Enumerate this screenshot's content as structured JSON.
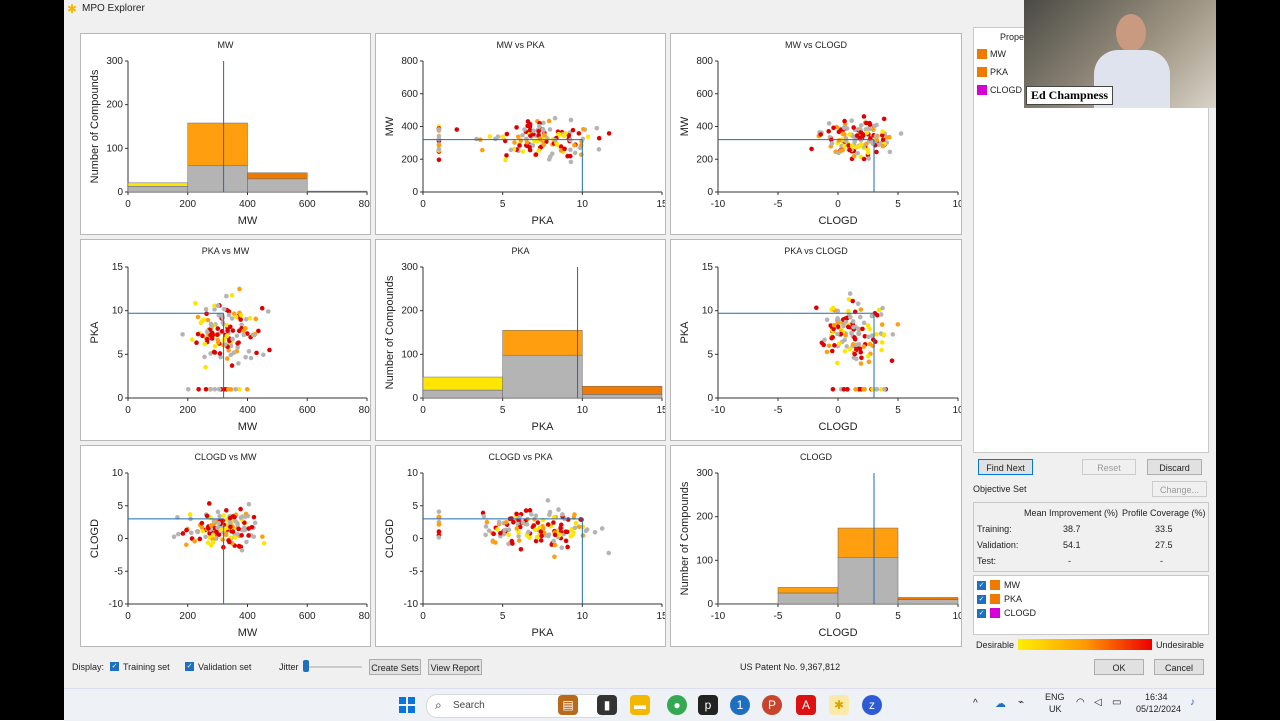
{
  "window": {
    "title": "MPO Explorer"
  },
  "colors": {
    "grey": "#b4b4b4",
    "yellow": "#ffe600",
    "orange": "#ff9f10",
    "dark_orange": "#f07a00",
    "red": "#e00000",
    "line": "#1f6bb0"
  },
  "chart_data": [
    {
      "type": "bar",
      "title": "MW",
      "xlabel": "MW",
      "ylabel": "Number of Compounds",
      "xlim": [
        0,
        800
      ],
      "ylim": [
        0,
        300
      ],
      "xticks": [
        "0",
        "200",
        "400",
        "600",
        "800"
      ],
      "yticks": [
        "0",
        "100",
        "200",
        "300"
      ],
      "bins": [
        [
          0,
          200
        ],
        [
          200,
          400
        ],
        [
          400,
          600
        ],
        [
          600,
          800
        ]
      ],
      "series": [
        {
          "name": "Training",
          "values": [
            13,
            60,
            30,
            1
          ]
        },
        {
          "name": "Validation",
          "values": [
            8,
            98,
            14,
            1
          ]
        }
      ],
      "marker": 320
    },
    {
      "type": "scatter",
      "title": "MW vs PKA",
      "xlabel": "PKA",
      "ylabel": "MW",
      "xlim": [
        0,
        15
      ],
      "ylim": [
        0,
        800
      ],
      "xticks": [
        "0",
        "5",
        "10",
        "15"
      ],
      "yticks": [
        "0",
        "200",
        "400",
        "600",
        "800"
      ],
      "crosshair": [
        10,
        320
      ]
    },
    {
      "type": "scatter",
      "title": "MW vs CLOGD",
      "xlabel": "CLOGD",
      "ylabel": "MW",
      "xlim": [
        -10,
        10
      ],
      "ylim": [
        0,
        800
      ],
      "xticks": [
        "-10",
        "-5",
        "0",
        "5",
        "10"
      ],
      "yticks": [
        "0",
        "200",
        "400",
        "600",
        "800"
      ],
      "crosshair": [
        3,
        320
      ]
    },
    {
      "type": "scatter",
      "title": "PKA vs MW",
      "xlabel": "MW",
      "ylabel": "PKA",
      "xlim": [
        0,
        800
      ],
      "ylim": [
        0,
        15
      ],
      "xticks": [
        "0",
        "200",
        "400",
        "600",
        "800"
      ],
      "yticks": [
        "0",
        "5",
        "10",
        "15"
      ],
      "crosshair": [
        320,
        9.7
      ]
    },
    {
      "type": "bar",
      "title": "PKA",
      "xlabel": "PKA",
      "ylabel": "Number of Compounds",
      "xlim": [
        0,
        15
      ],
      "ylim": [
        0,
        300
      ],
      "xticks": [
        "0",
        "5",
        "10",
        "15"
      ],
      "yticks": [
        "0",
        "100",
        "200",
        "300"
      ],
      "bins": [
        [
          0,
          5
        ],
        [
          5,
          10
        ],
        [
          10,
          15
        ]
      ],
      "series": [
        {
          "name": "Training",
          "values": [
            18,
            98,
            8
          ]
        },
        {
          "name": "Validation",
          "values": [
            30,
            57,
            19
          ]
        }
      ],
      "marker": 9.7
    },
    {
      "type": "scatter",
      "title": "PKA vs CLOGD",
      "xlabel": "CLOGD",
      "ylabel": "PKA",
      "xlim": [
        -10,
        10
      ],
      "ylim": [
        0,
        15
      ],
      "xticks": [
        "-10",
        "-5",
        "0",
        "5",
        "10"
      ],
      "yticks": [
        "0",
        "5",
        "10",
        "15"
      ],
      "crosshair": [
        3,
        9.7
      ]
    },
    {
      "type": "scatter",
      "title": "CLOGD vs MW",
      "xlabel": "MW",
      "ylabel": "CLOGD",
      "xlim": [
        0,
        800
      ],
      "ylim": [
        -10,
        10
      ],
      "xticks": [
        "0",
        "200",
        "400",
        "600",
        "800"
      ],
      "yticks": [
        "-10",
        "-5",
        "0",
        "5",
        "10"
      ],
      "crosshair": [
        320,
        3
      ]
    },
    {
      "type": "scatter",
      "title": "CLOGD vs PKA",
      "xlabel": "PKA",
      "ylabel": "CLOGD",
      "xlim": [
        0,
        15
      ],
      "ylim": [
        -10,
        10
      ],
      "xticks": [
        "0",
        "5",
        "10",
        "15"
      ],
      "yticks": [
        "-10",
        "-5",
        "0",
        "5",
        "10"
      ],
      "crosshair": [
        10,
        3
      ]
    },
    {
      "type": "bar",
      "title": "CLOGD",
      "xlabel": "CLOGD",
      "ylabel": "Number of Compounds",
      "xlim": [
        -10,
        10
      ],
      "ylim": [
        0,
        300
      ],
      "xticks": [
        "-10",
        "-5",
        "0",
        "5",
        "10"
      ],
      "yticks": [
        "0",
        "100",
        "200",
        "300"
      ],
      "bins": [
        [
          -10,
          -5
        ],
        [
          -5,
          0
        ],
        [
          0,
          5
        ],
        [
          5,
          10
        ]
      ],
      "series": [
        {
          "name": "Training",
          "values": [
            1,
            25,
            107,
            10
          ]
        },
        {
          "name": "Validation",
          "values": [
            0,
            13,
            67,
            5
          ]
        }
      ],
      "marker": 3
    }
  ],
  "sidebar": {
    "properties_header": "Prope",
    "properties": [
      {
        "name": "MW",
        "color": "#f07a00"
      },
      {
        "name": "PKA",
        "color": "#f07a00"
      },
      {
        "name": "CLOGD",
        "color": "#d600d6"
      }
    ],
    "find_next": "Find Next",
    "reset": "Reset",
    "discard": "Discard",
    "objective_set": "Objective Set",
    "change": "Change...",
    "stats": {
      "col1": "Mean Improvement (%)",
      "col2": "Profile Coverage (%)",
      "rows": [
        {
          "label": "Training:",
          "v1": "38.7",
          "v2": "33.5"
        },
        {
          "label": "Validation:",
          "v1": "54.1",
          "v2": "27.5"
        },
        {
          "label": "Test:",
          "v1": "-",
          "v2": "-"
        }
      ]
    },
    "objectives": [
      {
        "name": "MW",
        "color": "#f07a00"
      },
      {
        "name": "PKA",
        "color": "#f07a00"
      },
      {
        "name": "CLOGD",
        "color": "#d600d6"
      }
    ],
    "desirable": "Desirable",
    "undesirable": "Undesirable"
  },
  "bottom": {
    "display": "Display:",
    "training_set": "Training set",
    "validation_set": "Validation set",
    "jitter": "Jitter",
    "create_sets": "Create Sets",
    "view_report": "View Report",
    "patent": "US Patent No. 9,367,812",
    "ok": "OK",
    "cancel": "Cancel"
  },
  "webcam": {
    "name": "Ed Champness"
  },
  "taskbar": {
    "search": "Search",
    "lang1": "ENG",
    "lang2": "UK",
    "time": "16:34",
    "date": "05/12/2024"
  }
}
